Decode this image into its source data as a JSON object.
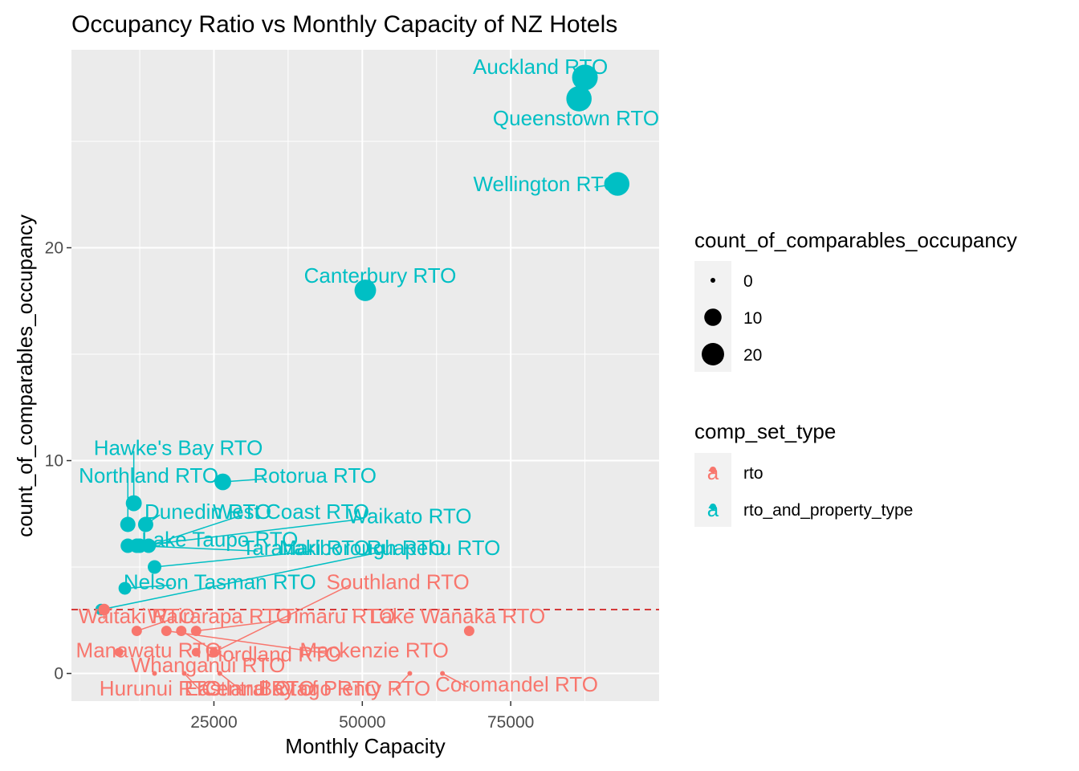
{
  "chart_data": {
    "type": "scatter",
    "title": "Occupancy Ratio vs Monthly Capacity of NZ Hotels",
    "xlabel": "Monthly Capacity",
    "ylabel": "count_of_comparables_occupancy",
    "xlim": [
      1000,
      100000
    ],
    "ylim": [
      -1.3,
      29.3
    ],
    "x_ticks": [
      25000,
      50000,
      75000
    ],
    "x_tick_labels": [
      "25000",
      "50000",
      "75000"
    ],
    "y_ticks": [
      0,
      10,
      20
    ],
    "y_tick_labels": [
      "0",
      "10",
      "20"
    ],
    "grid": true,
    "reference_line": {
      "y": 3,
      "color": "#cc0000",
      "style": "dashed"
    },
    "colors": {
      "rto": "#F8766D",
      "rto_and_property_type": "#00BFC4"
    },
    "points": [
      {
        "label": "Auckland RTO",
        "x": 87500,
        "y": 28,
        "size": 28,
        "group": "rto_and_property_type",
        "lx": 80000,
        "ly": 28.5
      },
      {
        "label": "Queenstown RTO",
        "x": 86500,
        "y": 27,
        "size": 27,
        "group": "rto_and_property_type",
        "lx": 86000,
        "ly": 26.1
      },
      {
        "label": "Wellington RTO",
        "x": 93000,
        "y": 23,
        "size": 23,
        "group": "rto_and_property_type",
        "lx": 81000,
        "ly": 23
      },
      {
        "label": "Canterbury RTO",
        "x": 50500,
        "y": 18,
        "size": 18,
        "group": "rto_and_property_type",
        "lx": 53000,
        "ly": 18.7
      },
      {
        "label": "Rotorua RTO",
        "x": 26500,
        "y": 9,
        "size": 9,
        "group": "rto_and_property_type",
        "lx": 42000,
        "ly": 9.3
      },
      {
        "label": "Hawke's Bay RTO",
        "x": 11500,
        "y": 8,
        "size": 8,
        "group": "rto_and_property_type",
        "lx": 19000,
        "ly": 10.6
      },
      {
        "label": "Northland RTO",
        "x": 10500,
        "y": 7,
        "size": 7,
        "group": "rto_and_property_type",
        "lx": 14000,
        "ly": 9.3
      },
      {
        "label": "Dunedin RTO",
        "x": 13500,
        "y": 7,
        "size": 7,
        "group": "rto_and_property_type",
        "lx": 24000,
        "ly": 7.6
      },
      {
        "label": "West Coast RTO",
        "x": 14000,
        "y": 6,
        "size": 6,
        "group": "rto_and_property_type",
        "lx": 38000,
        "ly": 7.6
      },
      {
        "label": "Waikato RTO",
        "x": 12500,
        "y": 6,
        "size": 6,
        "group": "rto_and_property_type",
        "lx": 58000,
        "ly": 7.4
      },
      {
        "label": "Lake Taupo RTO",
        "x": 10500,
        "y": 6,
        "size": 6,
        "group": "rto_and_property_type",
        "lx": 26000,
        "ly": 6.3
      },
      {
        "label": "Taranaki RTO",
        "x": 12000,
        "y": 6,
        "size": 6,
        "group": "rto_and_property_type",
        "lx": 40500,
        "ly": 5.9
      },
      {
        "label": "Marlborough RTO",
        "x": 15000,
        "y": 5,
        "size": 5,
        "group": "rto_and_property_type",
        "lx": 50000,
        "ly": 5.9
      },
      {
        "label": "Ruapehu RTO",
        "x": 6000,
        "y": 3,
        "size": 3,
        "group": "rto_and_property_type",
        "lx": 62000,
        "ly": 5.9
      },
      {
        "label": "Nelson Tasman RTO",
        "x": 10000,
        "y": 4,
        "size": 4,
        "group": "rto_and_property_type",
        "lx": 26000,
        "ly": 4.3
      },
      {
        "label": "Southland RTO",
        "x": 25000,
        "y": 1,
        "size": 1,
        "group": "rto",
        "lx": 56000,
        "ly": 4.3
      },
      {
        "label": "Waitaki RTO",
        "x": 6500,
        "y": 3,
        "size": 3,
        "group": "rto",
        "lx": 12000,
        "ly": 2.7
      },
      {
        "label": "Wairarapa RTO",
        "x": 12000,
        "y": 2,
        "size": 2,
        "group": "rto",
        "lx": 26000,
        "ly": 2.7
      },
      {
        "label": "Timaru RTO",
        "x": 22000,
        "y": 2,
        "size": 2,
        "group": "rto",
        "lx": 46000,
        "ly": 2.7
      },
      {
        "label": "Lake Wanaka RTO",
        "x": 68000,
        "y": 2,
        "size": 2,
        "group": "rto",
        "lx": 66000,
        "ly": 2.7
      },
      {
        "label": "Manawatu RTO",
        "x": 9000,
        "y": 1,
        "size": 1,
        "group": "rto",
        "lx": 14000,
        "ly": 1.1
      },
      {
        "label": "Fiordland RTO",
        "x": 19500,
        "y": 2,
        "size": 2,
        "group": "rto",
        "lx": 35000,
        "ly": 0.9
      },
      {
        "label": "Mackenzie RTO",
        "x": 17000,
        "y": 2,
        "size": 2,
        "group": "rto",
        "lx": 52000,
        "ly": 1.1
      },
      {
        "label": "Whanganui RTO",
        "x": 22000,
        "y": 1,
        "size": 1,
        "group": "rto",
        "lx": 24000,
        "ly": 0.4
      },
      {
        "label": "Hurunui RTO",
        "x": 15000,
        "y": 0,
        "size": 0,
        "group": "rto",
        "lx": 16000,
        "ly": -0.7
      },
      {
        "label": "Eastland RTO",
        "x": 20000,
        "y": 0,
        "size": 0,
        "group": "rto",
        "lx": 31000,
        "ly": -0.7
      },
      {
        "label": "Central Otago RTO",
        "x": 26000,
        "y": 0,
        "size": 0,
        "group": "rto",
        "lx": 38000,
        "ly": -0.7
      },
      {
        "label": "Bay of Plenty RTO",
        "x": 58000,
        "y": 0,
        "size": 0,
        "group": "rto",
        "lx": 47000,
        "ly": -0.7
      },
      {
        "label": "Coromandel RTO",
        "x": 63500,
        "y": 0,
        "size": 0,
        "group": "rto",
        "lx": 76000,
        "ly": -0.5
      }
    ],
    "legend": {
      "placement": "right",
      "size_title": "count_of_comparables_occupancy",
      "size_items": [
        {
          "label": "0",
          "size": 0
        },
        {
          "label": "10",
          "size": 10
        },
        {
          "label": "20",
          "size": 20
        }
      ],
      "color_title": "comp_set_type",
      "color_items": [
        {
          "label": "rto",
          "key": "rto"
        },
        {
          "label": "rto_and_property_type",
          "key": "rto_and_property_type"
        }
      ],
      "key_glyph": "a"
    }
  }
}
